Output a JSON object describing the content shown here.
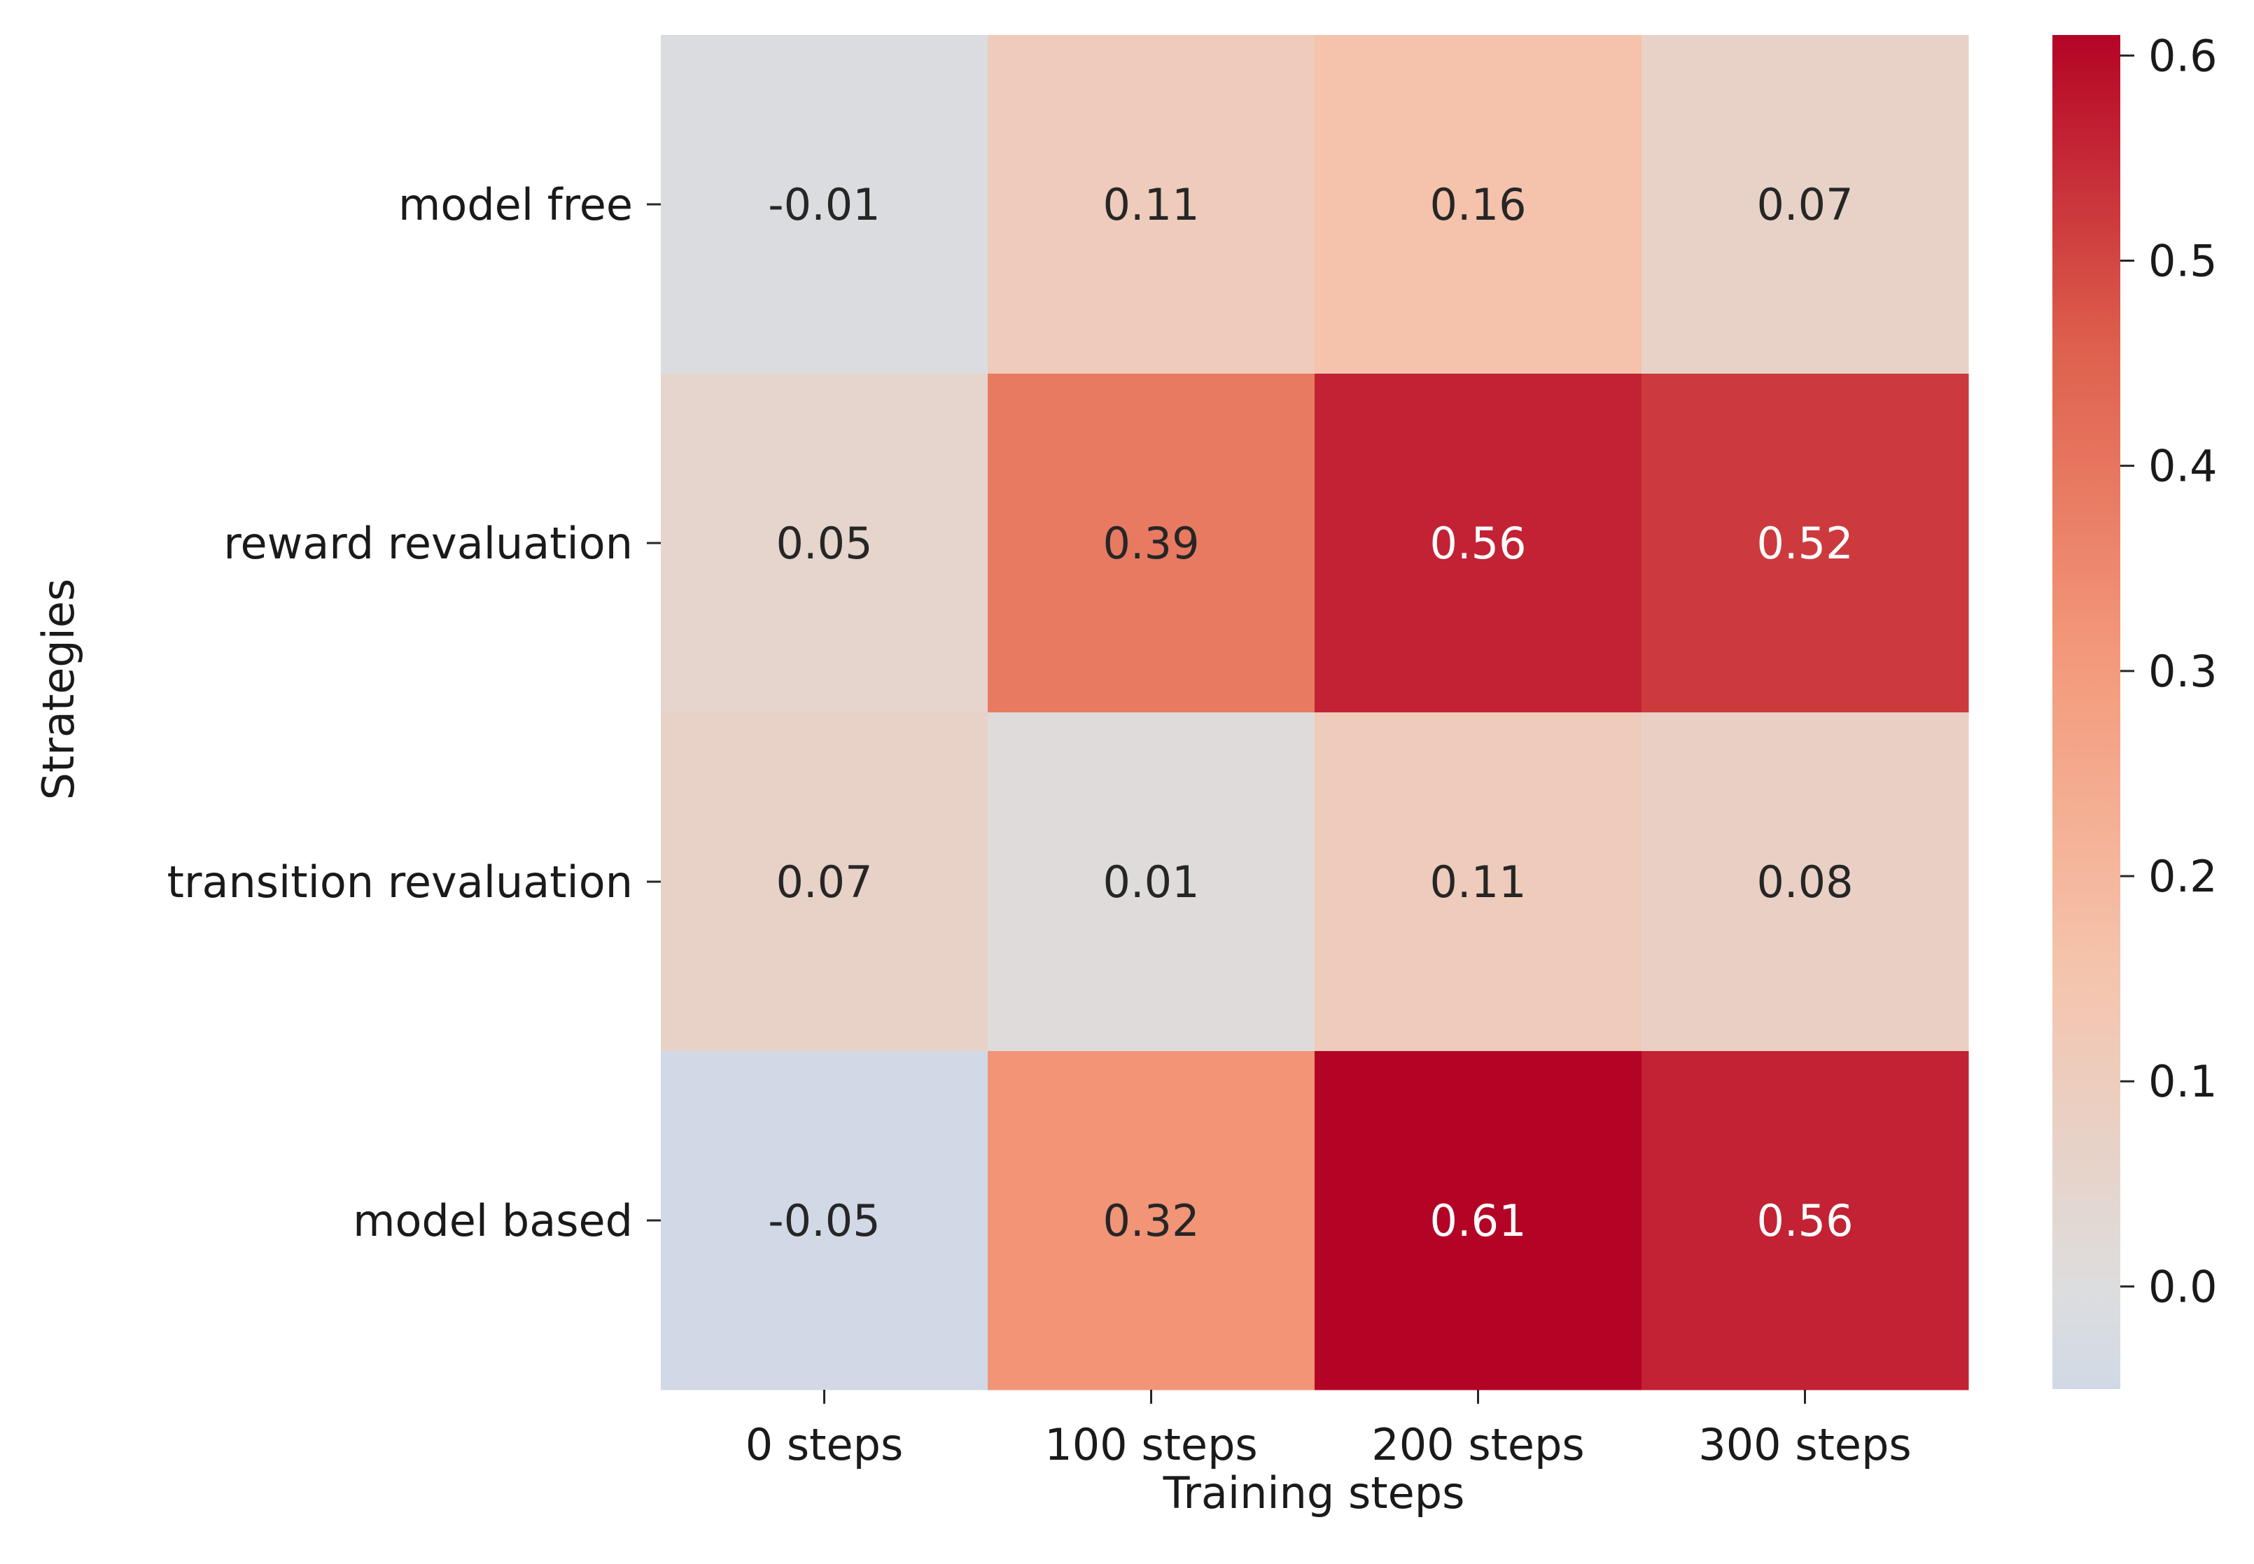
{
  "chart_data": {
    "type": "heatmap",
    "title": "",
    "xlabel": "Training steps",
    "ylabel": "Strategies",
    "x_categories": [
      "0 steps",
      "100 steps",
      "200 steps",
      "300 steps"
    ],
    "y_categories": [
      "model free",
      "reward revaluation",
      "transition revaluation",
      "model based"
    ],
    "values": [
      [
        -0.01,
        0.11,
        0.16,
        0.07
      ],
      [
        0.05,
        0.39,
        0.56,
        0.52
      ],
      [
        0.07,
        0.01,
        0.11,
        0.08
      ],
      [
        -0.05,
        0.32,
        0.61,
        0.56
      ]
    ],
    "cell_labels": [
      [
        "-0.01",
        "0.11",
        "0.16",
        "0.07"
      ],
      [
        "0.05",
        "0.39",
        "0.56",
        "0.52"
      ],
      [
        "0.07",
        "0.01",
        "0.11",
        "0.08"
      ],
      [
        "-0.05",
        "0.32",
        "0.61",
        "0.56"
      ]
    ],
    "colormap": "coolwarm",
    "center": 0.0,
    "colorbar": {
      "range": [
        -0.05,
        0.61
      ],
      "ticks": [
        0.0,
        0.1,
        0.2,
        0.3,
        0.4,
        0.5,
        0.6
      ],
      "tick_labels": [
        "0.0",
        "0.1",
        "0.2",
        "0.3",
        "0.4",
        "0.5",
        "0.6"
      ]
    },
    "legend": "colorbar-right",
    "grid": false
  }
}
